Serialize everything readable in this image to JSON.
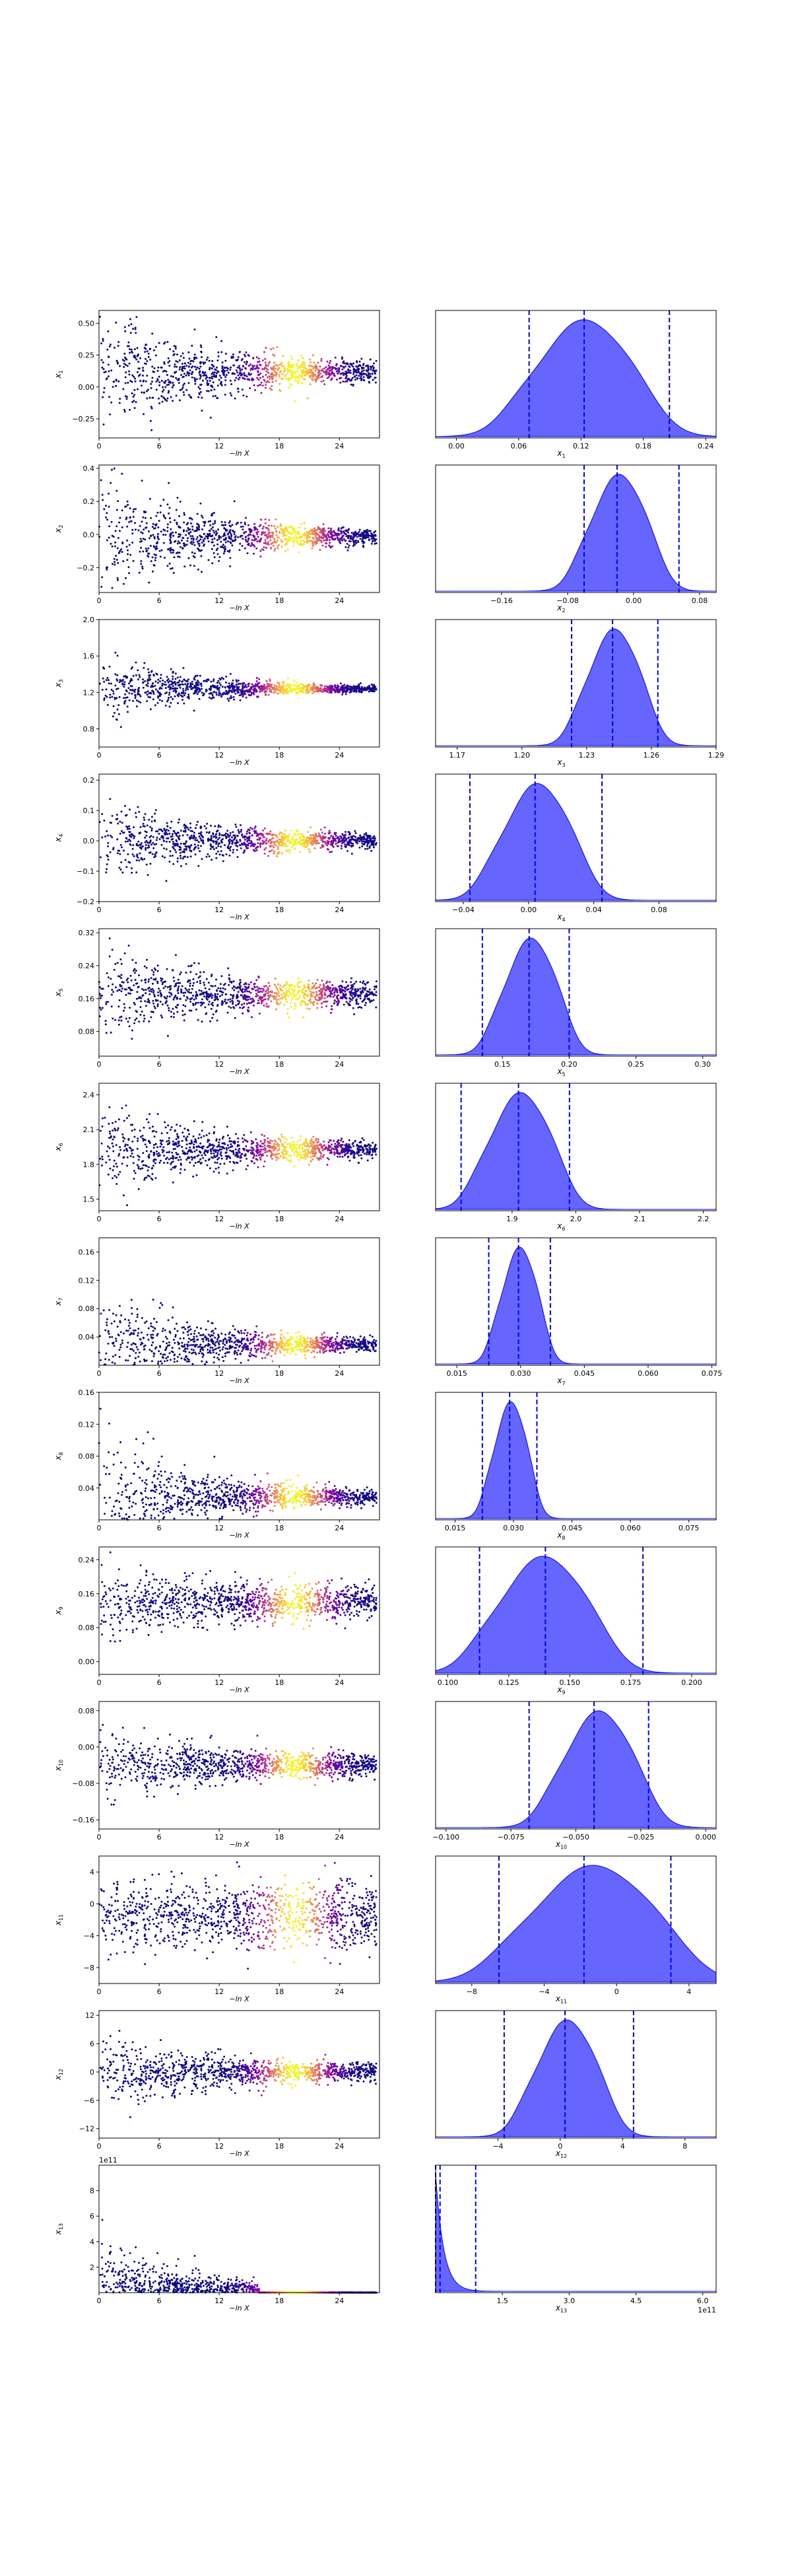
{
  "figure": {
    "scatter_xlabel": "−ln X",
    "scatter_xticks": [
      "0",
      "6",
      "12",
      "18",
      "24"
    ],
    "colormap": "plasma",
    "kde_color": "#0000ff",
    "quantile_line_color": "#0000ff",
    "quantile_line_style": "dashed"
  },
  "chart_data": [
    {
      "type": "scatter",
      "param": "x_1",
      "ylabel": "x1",
      "yticks": [
        "−0.25",
        "0.00",
        "0.25",
        "0.50"
      ],
      "ylim": [
        -0.4,
        0.6
      ],
      "center": 0.12,
      "spread_early": 0.25,
      "spread_late": 0.03,
      "xlim": [
        0,
        28
      ]
    },
    {
      "type": "area",
      "param": "x_1",
      "xlabel": "x1",
      "xticks": [
        "0.00",
        "0.06",
        "0.12",
        "0.18",
        "0.24"
      ],
      "xlim": [
        -0.02,
        0.25
      ],
      "quantiles": [
        0.07,
        0.123,
        0.205
      ],
      "peak": 0.12,
      "width": 0.038
    },
    {
      "type": "scatter",
      "param": "x_2",
      "ylabel": "x2",
      "yticks": [
        "−0.2",
        "0.0",
        "0.2",
        "0.4"
      ],
      "ylim": [
        -0.35,
        0.42
      ],
      "center": -0.01,
      "spread_early": 0.2,
      "spread_late": 0.015,
      "xlim": [
        0,
        28
      ]
    },
    {
      "type": "area",
      "param": "x_2",
      "xlabel": "x2",
      "xticks": [
        "−0.16",
        "−0.08",
        "0.00",
        "0.08"
      ],
      "xlim": [
        -0.24,
        0.1
      ],
      "quantiles": [
        -0.06,
        -0.02,
        0.055
      ],
      "peak": -0.02,
      "width": 0.028
    },
    {
      "type": "scatter",
      "param": "x_3",
      "ylabel": "x3",
      "yticks": [
        "0.8",
        "1.2",
        "1.6",
        "2.0"
      ],
      "ylim": [
        0.6,
        2.0
      ],
      "center": 1.24,
      "spread_early": 0.2,
      "spread_late": 0.008,
      "xlim": [
        0,
        28
      ]
    },
    {
      "type": "area",
      "param": "x_3",
      "xlabel": "x3",
      "xticks": [
        "1.17",
        "1.20",
        "1.23",
        "1.26",
        "1.29"
      ],
      "xlim": [
        1.16,
        1.29
      ],
      "quantiles": [
        1.223,
        1.242,
        1.263
      ],
      "peak": 1.242,
      "width": 0.01
    },
    {
      "type": "scatter",
      "param": "x_4",
      "ylabel": "x4",
      "yticks": [
        "−0.2",
        "−0.1",
        "0.0",
        "0.1",
        "0.2"
      ],
      "ylim": [
        -0.2,
        0.22
      ],
      "center": 0.0,
      "spread_early": 0.07,
      "spread_late": 0.01,
      "xlim": [
        0,
        28
      ]
    },
    {
      "type": "area",
      "param": "x_4",
      "xlabel": "x4",
      "xticks": [
        "−0.04",
        "0.00",
        "0.04",
        "0.08"
      ],
      "xlim": [
        -0.057,
        0.115
      ],
      "quantiles": [
        -0.036,
        0.004,
        0.045
      ],
      "peak": 0.004,
      "width": 0.017
    },
    {
      "type": "scatter",
      "param": "x_5",
      "ylabel": "x5",
      "yticks": [
        "0.08",
        "0.16",
        "0.24",
        "0.32"
      ],
      "ylim": [
        0.02,
        0.33
      ],
      "center": 0.17,
      "spread_early": 0.06,
      "spread_late": 0.012,
      "xlim": [
        0,
        28
      ]
    },
    {
      "type": "area",
      "param": "x_5",
      "xlabel": "x5",
      "xticks": [
        "0.15",
        "0.20",
        "0.25",
        "0.30"
      ],
      "xlim": [
        0.1,
        0.31
      ],
      "quantiles": [
        0.135,
        0.17,
        0.2
      ],
      "peak": 0.17,
      "width": 0.016
    },
    {
      "type": "scatter",
      "param": "x_6",
      "ylabel": "x6",
      "yticks": [
        "1.5",
        "1.8",
        "2.1",
        "2.4"
      ],
      "ylim": [
        1.4,
        2.5
      ],
      "center": 1.93,
      "spread_early": 0.2,
      "spread_late": 0.03,
      "xlim": [
        0,
        28
      ]
    },
    {
      "type": "area",
      "param": "x_6",
      "xlabel": "x6",
      "xticks": [
        "1.9",
        "2.0",
        "2.1",
        "2.2"
      ],
      "xlim": [
        1.78,
        2.22
      ],
      "quantiles": [
        1.82,
        1.91,
        1.99
      ],
      "peak": 1.91,
      "width": 0.04
    },
    {
      "type": "scatter",
      "param": "x_7",
      "ylabel": "x7",
      "yticks": [
        "0.04",
        "0.08",
        "0.12",
        "0.16"
      ],
      "ylim": [
        0.0,
        0.18
      ],
      "center": 0.029,
      "spread_early": 0.04,
      "spread_late": 0.003,
      "xlim": [
        0,
        28
      ]
    },
    {
      "type": "area",
      "param": "x_7",
      "xlabel": "x7",
      "xticks": [
        "0.015",
        "0.030",
        "0.045",
        "0.060",
        "0.075"
      ],
      "xlim": [
        0.01,
        0.076
      ],
      "quantiles": [
        0.0225,
        0.0295,
        0.037
      ],
      "peak": 0.0295,
      "width": 0.0035
    },
    {
      "type": "scatter",
      "param": "x_8",
      "ylabel": "x8",
      "yticks": [
        "0.04",
        "0.08",
        "0.12",
        "0.16"
      ],
      "ylim": [
        0.0,
        0.16
      ],
      "center": 0.029,
      "spread_early": 0.04,
      "spread_late": 0.003,
      "xlim": [
        0,
        28
      ]
    },
    {
      "type": "area",
      "param": "x_8",
      "xlabel": "x8",
      "xticks": [
        "0.015",
        "0.030",
        "0.045",
        "0.060",
        "0.075"
      ],
      "xlim": [
        0.01,
        0.082
      ],
      "quantiles": [
        0.022,
        0.029,
        0.036
      ],
      "peak": 0.029,
      "width": 0.0035
    },
    {
      "type": "scatter",
      "param": "x_9",
      "ylabel": "x9",
      "yticks": [
        "0.00",
        "0.08",
        "0.16",
        "0.24"
      ],
      "ylim": [
        -0.03,
        0.27
      ],
      "center": 0.14,
      "spread_early": 0.045,
      "spread_late": 0.018,
      "xlim": [
        0,
        28
      ]
    },
    {
      "type": "area",
      "param": "x_9",
      "xlabel": "x9",
      "xticks": [
        "0.100",
        "0.125",
        "0.150",
        "0.175",
        "0.200"
      ],
      "xlim": [
        0.095,
        0.21
      ],
      "quantiles": [
        0.113,
        0.14,
        0.18
      ],
      "peak": 0.138,
      "width": 0.015
    },
    {
      "type": "scatter",
      "param": "x_10",
      "ylabel": "x10",
      "yticks": [
        "−0.16",
        "−0.08",
        "0.00",
        "0.08"
      ],
      "ylim": [
        -0.18,
        0.1
      ],
      "center": -0.04,
      "spread_early": 0.04,
      "spread_late": 0.012,
      "xlim": [
        0,
        28
      ]
    },
    {
      "type": "area",
      "param": "x_10",
      "xlabel": "x10",
      "xticks": [
        "−0.100",
        "−0.075",
        "−0.050",
        "−0.025",
        "0.000"
      ],
      "xlim": [
        -0.104,
        0.004
      ],
      "quantiles": [
        -0.068,
        -0.043,
        -0.022
      ],
      "peak": -0.042,
      "width": 0.011
    },
    {
      "type": "scatter",
      "param": "x_11",
      "ylabel": "x11",
      "yticks": [
        "−8",
        "−4",
        "0",
        "4"
      ],
      "ylim": [
        -10,
        6
      ],
      "center": -1.5,
      "spread_early": 2.5,
      "spread_late": 2.0,
      "xlim": [
        0,
        28
      ]
    },
    {
      "type": "area",
      "param": "x_11",
      "xlabel": "x11",
      "xticks": [
        "−8",
        "−4",
        "0",
        "4"
      ],
      "xlim": [
        -10,
        5.5
      ],
      "quantiles": [
        -6.5,
        -1.8,
        3.0
      ],
      "peak": -1.5,
      "width": 2.8
    },
    {
      "type": "scatter",
      "param": "x_12",
      "ylabel": "x12",
      "yticks": [
        "−12",
        "−6",
        "0",
        "6",
        "12"
      ],
      "ylim": [
        -14,
        13
      ],
      "center": 0.0,
      "spread_early": 4.0,
      "spread_late": 0.8,
      "xlim": [
        0,
        28
      ]
    },
    {
      "type": "area",
      "param": "x_12",
      "xlabel": "x12",
      "xticks": [
        "−4",
        "0",
        "4",
        "8"
      ],
      "xlim": [
        -8,
        10
      ],
      "quantiles": [
        -3.6,
        0.3,
        4.7
      ],
      "peak": 0.3,
      "width": 1.6
    },
    {
      "type": "scatter",
      "param": "x_13",
      "ylabel": "x13",
      "offset_label": "1e11",
      "yticks": [
        "2",
        "4",
        "6",
        "8"
      ],
      "ylim": [
        0,
        10
      ],
      "center": 0.1,
      "spread_early": 2.0,
      "spread_late": 0.05,
      "xlim": [
        0,
        28
      ]
    },
    {
      "type": "area",
      "param": "x_13",
      "xlabel": "x13",
      "offset_label": "1e11",
      "xticks": [
        "1.5",
        "3.0",
        "4.5",
        "6.0"
      ],
      "xlim": [
        0,
        6.3
      ],
      "quantiles": [
        0.0,
        0.1,
        0.9
      ],
      "peak": 0.05,
      "width": 0.18
    }
  ]
}
